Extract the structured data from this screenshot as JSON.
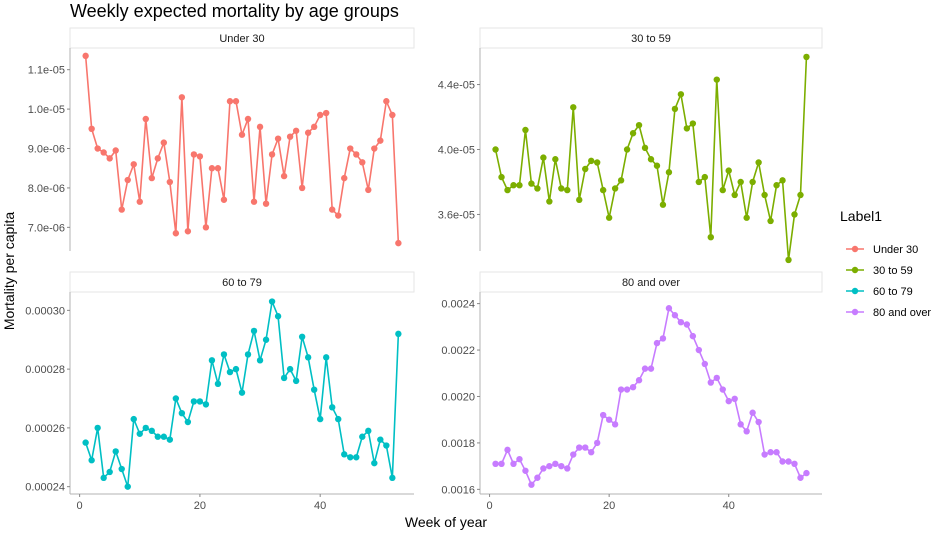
{
  "chart_data": {
    "type": "line",
    "title": "Weekly expected mortality by age groups",
    "xlabel": "Week of year",
    "ylabel": "Mortality per capita",
    "legend": {
      "title": "Label1",
      "placement": "right",
      "items": [
        "Under 30",
        "30 to 59",
        "60 to 79",
        "80 and over"
      ]
    },
    "colors": {
      "Under 30": "#F8766D",
      "30 to 59": "#7CAE00",
      "60 to 79": "#00BFC4",
      "80 and over": "#C77CFF"
    },
    "grid": false,
    "x_ticks": [
      0,
      20,
      40
    ],
    "xlim": [
      -1.6,
      55.6
    ],
    "panels": [
      {
        "name": "Under 30",
        "ylim": [
          6.4e-06,
          1.155e-05
        ],
        "y_ticks": [
          7e-06,
          8e-06,
          9e-06,
          1e-05,
          1.1e-05
        ],
        "y_tick_labels": [
          "7.0e-06",
          "8.0e-06",
          "9.0e-06",
          "1.0e-05",
          "1.1e-05"
        ],
        "x": [
          1,
          2,
          3,
          4,
          5,
          6,
          7,
          8,
          9,
          10,
          11,
          12,
          13,
          14,
          15,
          16,
          17,
          18,
          19,
          20,
          21,
          22,
          23,
          24,
          25,
          26,
          27,
          28,
          29,
          30,
          31,
          32,
          33,
          34,
          35,
          36,
          37,
          38,
          39,
          40,
          41,
          42,
          43,
          44,
          45,
          46,
          47,
          48,
          49,
          50,
          51,
          52,
          53
        ],
        "values": [
          1.135e-05,
          9.5e-06,
          9e-06,
          8.9e-06,
          8.75e-06,
          8.95e-06,
          7.45e-06,
          8.2e-06,
          8.6e-06,
          7.65e-06,
          9.75e-06,
          8.25e-06,
          8.75e-06,
          9.15e-06,
          8.15e-06,
          6.85e-06,
          1.03e-05,
          6.9e-06,
          8.85e-06,
          8.8e-06,
          7e-06,
          8.5e-06,
          8.5e-06,
          7.7e-06,
          1.02e-05,
          1.02e-05,
          9.35e-06,
          9.75e-06,
          7.65e-06,
          9.55e-06,
          7.6e-06,
          8.85e-06,
          9.25e-06,
          8.3e-06,
          9.3e-06,
          9.45e-06,
          8e-06,
          9.4e-06,
          9.55e-06,
          9.85e-06,
          9.9e-06,
          7.45e-06,
          7.3e-06,
          8.25e-06,
          9e-06,
          8.85e-06,
          8.65e-06,
          7.95e-06,
          9e-06,
          9.2e-06,
          1.02e-05,
          9.85e-06,
          6.6e-06
        ]
      },
      {
        "name": "30 to 59",
        "ylim": [
          3.375e-05,
          4.625e-05
        ],
        "y_ticks": [
          3.6e-05,
          4e-05,
          4.4e-05
        ],
        "y_tick_labels": [
          "3.6e-05",
          "4.0e-05",
          "4.4e-05"
        ],
        "x": [
          1,
          2,
          3,
          4,
          5,
          6,
          7,
          8,
          9,
          10,
          11,
          12,
          13,
          14,
          15,
          16,
          17,
          18,
          19,
          20,
          21,
          22,
          23,
          24,
          25,
          26,
          27,
          28,
          29,
          30,
          31,
          32,
          33,
          34,
          35,
          36,
          37,
          38,
          39,
          40,
          41,
          42,
          43,
          44,
          45,
          46,
          47,
          48,
          49,
          50,
          51,
          52,
          53
        ],
        "values": [
          4e-05,
          3.83e-05,
          3.75e-05,
          3.78e-05,
          3.78e-05,
          4.12e-05,
          3.79e-05,
          3.76e-05,
          3.95e-05,
          3.68e-05,
          3.94e-05,
          3.76e-05,
          3.75e-05,
          4.26e-05,
          3.69e-05,
          3.88e-05,
          3.93e-05,
          3.92e-05,
          3.75e-05,
          3.58e-05,
          3.76e-05,
          3.81e-05,
          4e-05,
          4.1e-05,
          4.15e-05,
          4.01e-05,
          3.94e-05,
          3.9e-05,
          3.66e-05,
          3.86e-05,
          4.25e-05,
          4.34e-05,
          4.13e-05,
          4.16e-05,
          3.8e-05,
          3.83e-05,
          3.46e-05,
          4.43e-05,
          3.75e-05,
          3.87e-05,
          3.72e-05,
          3.8e-05,
          3.58e-05,
          3.8e-05,
          3.92e-05,
          3.72e-05,
          3.56e-05,
          3.78e-05,
          3.81e-05,
          3.32e-05,
          3.6e-05,
          3.72e-05,
          4.57e-05
        ]
      },
      {
        "name": "60 to 79",
        "ylim": [
          0.0002375,
          0.00030625
        ],
        "y_ticks": [
          0.00024,
          0.00026,
          0.00028,
          0.0003
        ],
        "y_tick_labels": [
          "0.00024",
          "0.00026",
          "0.00028",
          "0.00030"
        ],
        "x": [
          1,
          2,
          3,
          4,
          5,
          6,
          7,
          8,
          9,
          10,
          11,
          12,
          13,
          14,
          15,
          16,
          17,
          18,
          19,
          20,
          21,
          22,
          23,
          24,
          25,
          26,
          27,
          28,
          29,
          30,
          31,
          32,
          33,
          34,
          35,
          36,
          37,
          38,
          39,
          40,
          41,
          42,
          43,
          44,
          45,
          46,
          47,
          48,
          49,
          50,
          51,
          52,
          53
        ],
        "values": [
          0.000255,
          0.000249,
          0.00026,
          0.000243,
          0.000245,
          0.000252,
          0.000246,
          0.00024,
          0.000263,
          0.000258,
          0.00026,
          0.000259,
          0.000257,
          0.000257,
          0.000256,
          0.00027,
          0.000265,
          0.000262,
          0.000269,
          0.000269,
          0.000268,
          0.000283,
          0.000275,
          0.000285,
          0.000279,
          0.00028,
          0.000272,
          0.000285,
          0.000293,
          0.000283,
          0.00029,
          0.000303,
          0.000298,
          0.000277,
          0.00028,
          0.000276,
          0.000291,
          0.000284,
          0.000273,
          0.000263,
          0.000284,
          0.000267,
          0.000263,
          0.000251,
          0.00025,
          0.00025,
          0.000257,
          0.000259,
          0.000248,
          0.000256,
          0.000254,
          0.000243,
          0.000292
        ]
      },
      {
        "name": "80 and over",
        "ylim": [
          0.00158,
          0.00245
        ],
        "y_ticks": [
          0.0016,
          0.0018,
          0.002,
          0.0022,
          0.0024
        ],
        "y_tick_labels": [
          "0.0016",
          "0.0018",
          "0.0020",
          "0.0022",
          "0.0024"
        ],
        "x": [
          1,
          2,
          3,
          4,
          5,
          6,
          7,
          8,
          9,
          10,
          11,
          12,
          13,
          14,
          15,
          16,
          17,
          18,
          19,
          20,
          21,
          22,
          23,
          24,
          25,
          26,
          27,
          28,
          29,
          30,
          31,
          32,
          33,
          34,
          35,
          36,
          37,
          38,
          39,
          40,
          41,
          42,
          43,
          44,
          45,
          46,
          47,
          48,
          49,
          50,
          51,
          52,
          53
        ],
        "values": [
          0.00171,
          0.00171,
          0.00177,
          0.00171,
          0.00173,
          0.00168,
          0.00162,
          0.00165,
          0.00169,
          0.0017,
          0.00171,
          0.0017,
          0.00169,
          0.00175,
          0.00178,
          0.00178,
          0.00176,
          0.0018,
          0.00192,
          0.0019,
          0.00188,
          0.00203,
          0.00203,
          0.00204,
          0.00207,
          0.00212,
          0.00212,
          0.00223,
          0.00225,
          0.00238,
          0.00235,
          0.00232,
          0.00231,
          0.00226,
          0.0022,
          0.00214,
          0.00206,
          0.00208,
          0.00203,
          0.00198,
          0.00199,
          0.00188,
          0.00185,
          0.00193,
          0.00189,
          0.00175,
          0.00176,
          0.00176,
          0.00172,
          0.00172,
          0.00171,
          0.00165,
          0.00167
        ]
      }
    ]
  }
}
